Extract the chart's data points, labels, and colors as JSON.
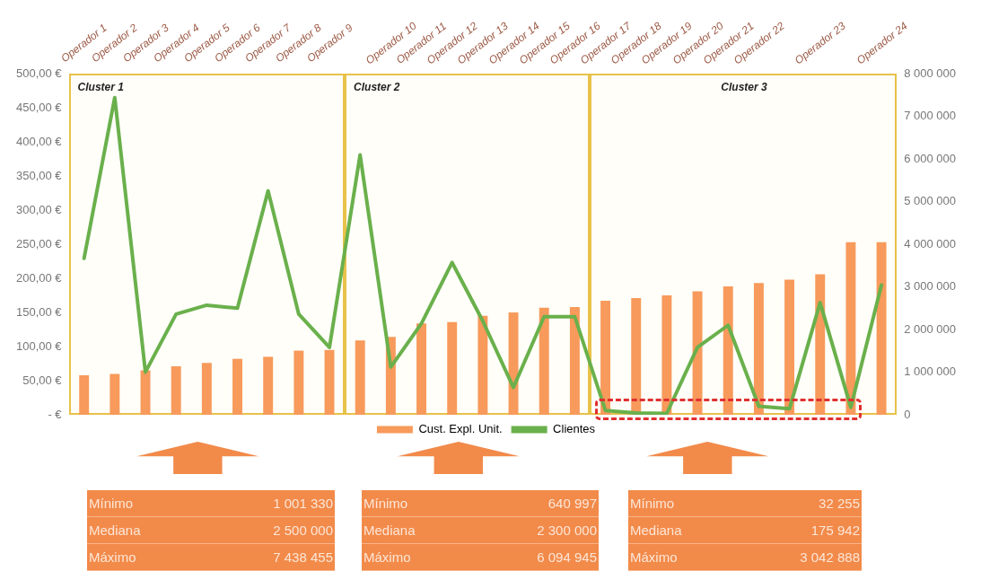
{
  "chart_data": {
    "type": "bar",
    "categories": [
      "Operador 1",
      "Operador 2",
      "Operador 3",
      "Operador 4",
      "Operador 5",
      "Operador 6",
      "Operador 7",
      "Operador 8",
      "Operador 9",
      null,
      "Operador 10",
      "Operador 11",
      "Operador 12",
      "Operador 13",
      "Operador 14",
      "Operador 15",
      "Operador 16",
      "Operador 17",
      "Operador 18",
      "Operador 19",
      "Operador 20",
      "Operador 21",
      "Operador 22",
      null,
      "Operador 23",
      null,
      "Operador 24"
    ],
    "series": [
      {
        "name": "Cust. Expl. Unit.",
        "color": "#f79a5b",
        "values": [
          58,
          60,
          65,
          71,
          76,
          82,
          85,
          94,
          95,
          109,
          114,
          134,
          136,
          145,
          150,
          157,
          158,
          167,
          171,
          175,
          181,
          188,
          193,
          198,
          206,
          253,
          253
        ]
      },
      {
        "name": "Clientes",
        "type": "line",
        "axis": "y2",
        "color": "#6ab04c",
        "values": [
          3670000,
          7438455,
          1001330,
          2360000,
          2570000,
          2500000,
          5250000,
          2360000,
          1580000,
          6094945,
          1120000,
          2140000,
          3570000,
          2200000,
          640997,
          2300000,
          2300000,
          100000,
          40000,
          32255,
          1580000,
          2100000,
          200000,
          140000,
          2630000,
          175942,
          3042888
        ]
      }
    ],
    "ylim": [
      0,
      500
    ],
    "yticks": [
      {
        "value": 0,
        "label": "- €"
      },
      {
        "value": 50,
        "label": "50,00 €"
      },
      {
        "value": 100,
        "label": "100,00 €"
      },
      {
        "value": 150,
        "label": "150,00 €"
      },
      {
        "value": 200,
        "label": "200,00 €"
      },
      {
        "value": 250,
        "label": "250,00 €"
      },
      {
        "value": 300,
        "label": "300,00 €"
      },
      {
        "value": 350,
        "label": "350,00 €"
      },
      {
        "value": 400,
        "label": "400,00 €"
      },
      {
        "value": 450,
        "label": "450,00 €"
      },
      {
        "value": 500,
        "label": "500,00 €"
      }
    ],
    "y2lim": [
      0,
      8000000
    ],
    "y2ticks": [
      {
        "value": 0,
        "label": "0"
      },
      {
        "value": 1000000,
        "label": "1 000 000"
      },
      {
        "value": 2000000,
        "label": "2 000 000"
      },
      {
        "value": 3000000,
        "label": "3 000 000"
      },
      {
        "value": 4000000,
        "label": "4 000 000"
      },
      {
        "value": 5000000,
        "label": "5 000 000"
      },
      {
        "value": 6000000,
        "label": "6 000 000"
      },
      {
        "value": 7000000,
        "label": "7 000 000"
      },
      {
        "value": 8000000,
        "label": "8 000 000"
      }
    ],
    "grid": false,
    "legend": "bottom",
    "marker": "none",
    "line_style": "solid",
    "annotations": [
      "Cluster 1",
      "Cluster 2",
      "Cluster 3",
      "Mínimo",
      "1 001 330",
      "Mediana",
      "2 500 000",
      "Máximo",
      "7 438 455",
      "Mínimo",
      "640 997",
      "Mediana",
      "2 300 000",
      "Máximo",
      "6 094 945",
      "Mínimo",
      "32 255",
      "Mediana",
      "175 942",
      "Máximo",
      "3 042 888"
    ]
  }
}
